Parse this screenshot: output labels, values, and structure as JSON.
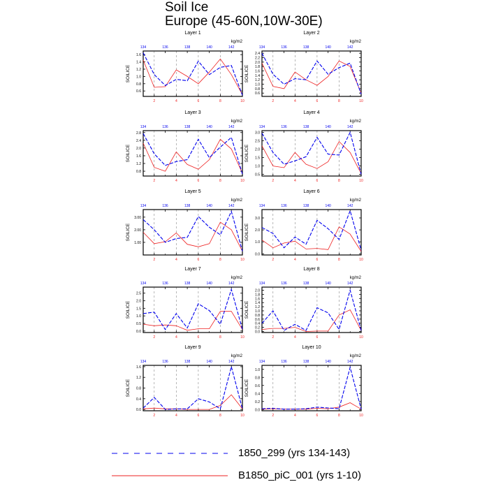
{
  "title": "Soil Ice",
  "subtitle": "Europe (45-60N,10W-30E)",
  "colors": {
    "series1": "#0000ee",
    "series2": "#ee2222",
    "axis": "#000000"
  },
  "legend": [
    {
      "label": "1850_299 (yrs 134-143)",
      "color": "#0000ee",
      "style": "dashed"
    },
    {
      "label": "B1850_piC_001 (yrs 1-10)",
      "color": "#ee2222",
      "style": "solid"
    }
  ],
  "chart_data": [
    {
      "type": "line",
      "title": "Layer 1",
      "ylabel": "SOILICE",
      "units": "kg/m2",
      "xlim": [
        1,
        10
      ],
      "ylim": [
        0.45,
        1.7
      ],
      "yticks": [
        0.6,
        0.8,
        1.0,
        1.2,
        1.4,
        1.6
      ],
      "ytick_labels": [
        "0.6",
        "0.8",
        "1.0",
        "1.2",
        "1.4",
        "1.6"
      ],
      "x_bottom_ticks": [
        "2",
        "4",
        "6",
        "8",
        "10"
      ],
      "x_top_ticks": [
        "134",
        "136",
        "138",
        "140",
        "142"
      ],
      "series": [
        {
          "name": "1850_299 (yrs 134-143)",
          "values": [
            1.65,
            1.05,
            0.75,
            0.92,
            0.88,
            1.42,
            1.05,
            1.25,
            1.3,
            0.48
          ]
        },
        {
          "name": "B1850_piC_001 (yrs 1-10)",
          "values": [
            1.45,
            0.7,
            0.72,
            1.18,
            1.0,
            0.8,
            1.12,
            1.48,
            1.05,
            0.5
          ]
        }
      ]
    },
    {
      "type": "line",
      "title": "Layer 2",
      "ylabel": "SOILICE",
      "units": "kg/m2",
      "xlim": [
        1,
        10
      ],
      "ylim": [
        0.45,
        2.5
      ],
      "yticks": [
        0.6,
        0.8,
        1.0,
        1.2,
        1.4,
        1.6,
        1.8,
        2.0,
        2.2,
        2.4
      ],
      "ytick_labels": [
        "0.6",
        "0.8",
        "1.0",
        "1.2",
        "1.4",
        "1.6",
        "1.8",
        "2.0",
        "2.2",
        "2.4"
      ],
      "x_bottom_ticks": [
        "2",
        "4",
        "6",
        "8",
        "10"
      ],
      "x_top_ticks": [
        "134",
        "136",
        "138",
        "140",
        "142"
      ],
      "series": [
        {
          "name": "1850_299 (yrs 134-143)",
          "values": [
            2.4,
            1.45,
            1.0,
            1.25,
            1.2,
            2.05,
            1.45,
            1.75,
            1.95,
            0.55
          ]
        },
        {
          "name": "B1850_piC_001 (yrs 1-10)",
          "values": [
            1.95,
            0.9,
            0.8,
            1.55,
            1.2,
            0.95,
            1.35,
            2.05,
            1.8,
            0.6
          ]
        }
      ]
    },
    {
      "type": "line",
      "title": "Layer 3",
      "ylabel": "SOILICE",
      "units": "kg/m2",
      "xlim": [
        1,
        10
      ],
      "ylim": [
        0.55,
        2.9
      ],
      "yticks": [
        0.8,
        1.2,
        1.6,
        2.0,
        2.4,
        2.8
      ],
      "ytick_labels": [
        "0.8",
        "1.2",
        "1.6",
        "2.0",
        "2.4",
        "2.8"
      ],
      "x_bottom_ticks": [
        "2",
        "4",
        "6",
        "8",
        "10"
      ],
      "x_top_ticks": [
        "134",
        "136",
        "138",
        "140",
        "142"
      ],
      "series": [
        {
          "name": "1850_299 (yrs 134-143)",
          "values": [
            2.75,
            1.7,
            1.1,
            1.3,
            1.4,
            2.45,
            1.5,
            2.05,
            2.55,
            0.65
          ]
        },
        {
          "name": "B1850_piC_001 (yrs 1-10)",
          "values": [
            2.25,
            1.0,
            0.8,
            1.8,
            1.15,
            0.9,
            1.4,
            2.45,
            1.95,
            0.7
          ]
        }
      ]
    },
    {
      "type": "line",
      "title": "Layer 4",
      "ylabel": "SOILICE",
      "units": "kg/m2",
      "xlim": [
        1,
        10
      ],
      "ylim": [
        0.4,
        3.1
      ],
      "yticks": [
        0.5,
        1.0,
        1.5,
        2.0,
        2.5,
        3.0
      ],
      "ytick_labels": [
        "0.5",
        "1.0",
        "1.5",
        "2.0",
        "2.5",
        "3.0"
      ],
      "x_bottom_ticks": [
        "2",
        "4",
        "6",
        "8",
        "10"
      ],
      "x_top_ticks": [
        "134",
        "136",
        "138",
        "140",
        "142"
      ],
      "series": [
        {
          "name": "1850_299 (yrs 134-143)",
          "values": [
            2.95,
            1.8,
            1.1,
            1.3,
            1.55,
            2.7,
            1.7,
            1.65,
            3.0,
            0.5
          ]
        },
        {
          "name": "B1850_piC_001 (yrs 1-10)",
          "values": [
            2.2,
            1.0,
            0.9,
            1.8,
            1.1,
            0.85,
            1.25,
            2.45,
            1.8,
            0.55
          ]
        }
      ]
    },
    {
      "type": "line",
      "title": "Layer 5",
      "ylabel": "SOILICE",
      "units": "kg/m2",
      "xlim": [
        1,
        10
      ],
      "ylim": [
        0.0,
        3.6
      ],
      "yticks": [
        1.0,
        2.0,
        3.0
      ],
      "ytick_labels": [
        "1.00",
        "2.00",
        "3.00"
      ],
      "x_bottom_ticks": [
        "2",
        "4",
        "6",
        "8",
        "10"
      ],
      "x_top_ticks": [
        "134",
        "136",
        "138",
        "140",
        "142"
      ],
      "series": [
        {
          "name": "1850_299 (yrs 134-143)",
          "values": [
            2.8,
            2.0,
            1.0,
            1.3,
            1.4,
            3.05,
            2.2,
            1.6,
            3.45,
            0.3
          ]
        },
        {
          "name": "B1850_piC_001 (yrs 1-10)",
          "values": [
            1.8,
            0.9,
            1.05,
            1.75,
            0.85,
            0.65,
            0.9,
            2.6,
            2.0,
            0.3
          ]
        }
      ]
    },
    {
      "type": "line",
      "title": "Layer 6",
      "ylabel": "SOILICE",
      "units": "kg/m2",
      "xlim": [
        1,
        10
      ],
      "ylim": [
        -0.1,
        3.7
      ],
      "yticks": [
        0.0,
        1.0,
        2.0,
        3.0
      ],
      "ytick_labels": [
        "0.0",
        "1.0",
        "2.0",
        "3.0"
      ],
      "x_bottom_ticks": [
        "2",
        "4",
        "6",
        "8",
        "10"
      ],
      "x_top_ticks": [
        "134",
        "136",
        "138",
        "140",
        "142"
      ],
      "series": [
        {
          "name": "1850_299 (yrs 134-143)",
          "values": [
            2.2,
            1.7,
            0.5,
            1.4,
            0.8,
            2.8,
            2.1,
            1.2,
            3.6,
            0.3
          ]
        },
        {
          "name": "B1850_piC_001 (yrs 1-10)",
          "values": [
            1.15,
            0.5,
            0.9,
            1.05,
            0.4,
            0.45,
            0.35,
            2.25,
            1.65,
            0.2
          ]
        }
      ]
    },
    {
      "type": "line",
      "title": "Layer 7",
      "ylabel": "SOILICE",
      "units": "kg/m2",
      "xlim": [
        1,
        10
      ],
      "ylim": [
        -0.1,
        2.9
      ],
      "yticks": [
        0.0,
        0.5,
        1.0,
        1.5,
        2.0,
        2.5
      ],
      "ytick_labels": [
        "0.0",
        "0.5",
        "1.0",
        "1.5",
        "2.0",
        "2.5"
      ],
      "x_bottom_ticks": [
        "2",
        "4",
        "6",
        "8",
        "10"
      ],
      "x_top_ticks": [
        "134",
        "136",
        "138",
        "140",
        "142"
      ],
      "series": [
        {
          "name": "1850_299 (yrs 134-143)",
          "values": [
            1.15,
            1.25,
            0.1,
            1.15,
            0.2,
            1.8,
            1.35,
            0.45,
            2.75,
            0.1
          ]
        },
        {
          "name": "B1850_piC_001 (yrs 1-10)",
          "values": [
            0.45,
            0.35,
            0.4,
            0.35,
            0.05,
            0.15,
            0.15,
            1.3,
            1.3,
            0.1
          ]
        }
      ]
    },
    {
      "type": "line",
      "title": "Layer 8",
      "ylabel": "SOILICE",
      "units": "kg/m2",
      "xlim": [
        1,
        10
      ],
      "ylim": [
        -0.05,
        2.15
      ],
      "yticks": [
        0.0,
        0.2,
        0.4,
        0.6,
        0.8,
        1.0,
        1.2,
        1.4,
        1.6,
        1.8,
        2.0
      ],
      "ytick_labels": [
        "0.0",
        "0.2",
        "0.4",
        "0.6",
        "0.8",
        "1.0",
        "1.2",
        "1.4",
        "1.6",
        "1.8",
        "2.0"
      ],
      "x_bottom_ticks": [
        "2",
        "4",
        "6",
        "8",
        "10"
      ],
      "x_top_ticks": [
        "134",
        "136",
        "138",
        "140",
        "142"
      ],
      "series": [
        {
          "name": "1850_299 (yrs 134-143)",
          "values": [
            0.4,
            1.0,
            0.05,
            0.35,
            0.05,
            1.15,
            0.9,
            0.1,
            2.0,
            0.05
          ]
        },
        {
          "name": "B1850_piC_001 (yrs 1-10)",
          "values": [
            0.1,
            0.15,
            0.15,
            0.2,
            0.0,
            0.02,
            0.02,
            0.8,
            1.05,
            0.05
          ]
        }
      ]
    },
    {
      "type": "line",
      "title": "Layer 9",
      "ylabel": "SOILICE",
      "units": "kg/m2",
      "xlim": [
        1,
        10
      ],
      "ylim": [
        -0.05,
        1.65
      ],
      "yticks": [
        0.0,
        0.4,
        0.8,
        1.2,
        1.6
      ],
      "ytick_labels": [
        "0.0",
        "0.4",
        "0.8",
        "1.2",
        "1.6"
      ],
      "x_bottom_ticks": [
        "2",
        "4",
        "6",
        "8",
        "10"
      ],
      "x_top_ticks": [
        "134",
        "136",
        "138",
        "140",
        "142"
      ],
      "series": [
        {
          "name": "1850_299 (yrs 134-143)",
          "values": [
            0.05,
            0.45,
            0.0,
            0.02,
            0.02,
            0.4,
            0.28,
            0.02,
            1.6,
            0.02
          ]
        },
        {
          "name": "B1850_piC_001 (yrs 1-10)",
          "values": [
            0.02,
            0.05,
            0.02,
            0.02,
            0.0,
            0.0,
            0.0,
            0.15,
            0.55,
            0.02
          ]
        }
      ]
    },
    {
      "type": "line",
      "title": "Layer 10",
      "ylabel": "SOILICE",
      "units": "kg/m2",
      "xlim": [
        1,
        10
      ],
      "ylim": [
        -0.03,
        1.1
      ],
      "yticks": [
        0.0,
        0.2,
        0.4,
        0.6,
        0.8,
        1.0
      ],
      "ytick_labels": [
        "0.0",
        "0.2",
        "0.4",
        "0.6",
        "0.8",
        "1.0"
      ],
      "x_bottom_ticks": [
        "2",
        "4",
        "6",
        "8",
        "10"
      ],
      "x_top_ticks": [
        "134",
        "136",
        "138",
        "140",
        "142"
      ],
      "series": [
        {
          "name": "1850_299 (yrs 134-143)",
          "values": [
            0.02,
            0.03,
            0.01,
            0.01,
            0.02,
            0.06,
            0.04,
            0.02,
            1.05,
            0.01
          ]
        },
        {
          "name": "B1850_piC_001 (yrs 1-10)",
          "values": [
            0.01,
            0.02,
            0.01,
            0.01,
            0.01,
            0.03,
            0.02,
            0.06,
            0.17,
            0.01
          ]
        }
      ]
    }
  ]
}
